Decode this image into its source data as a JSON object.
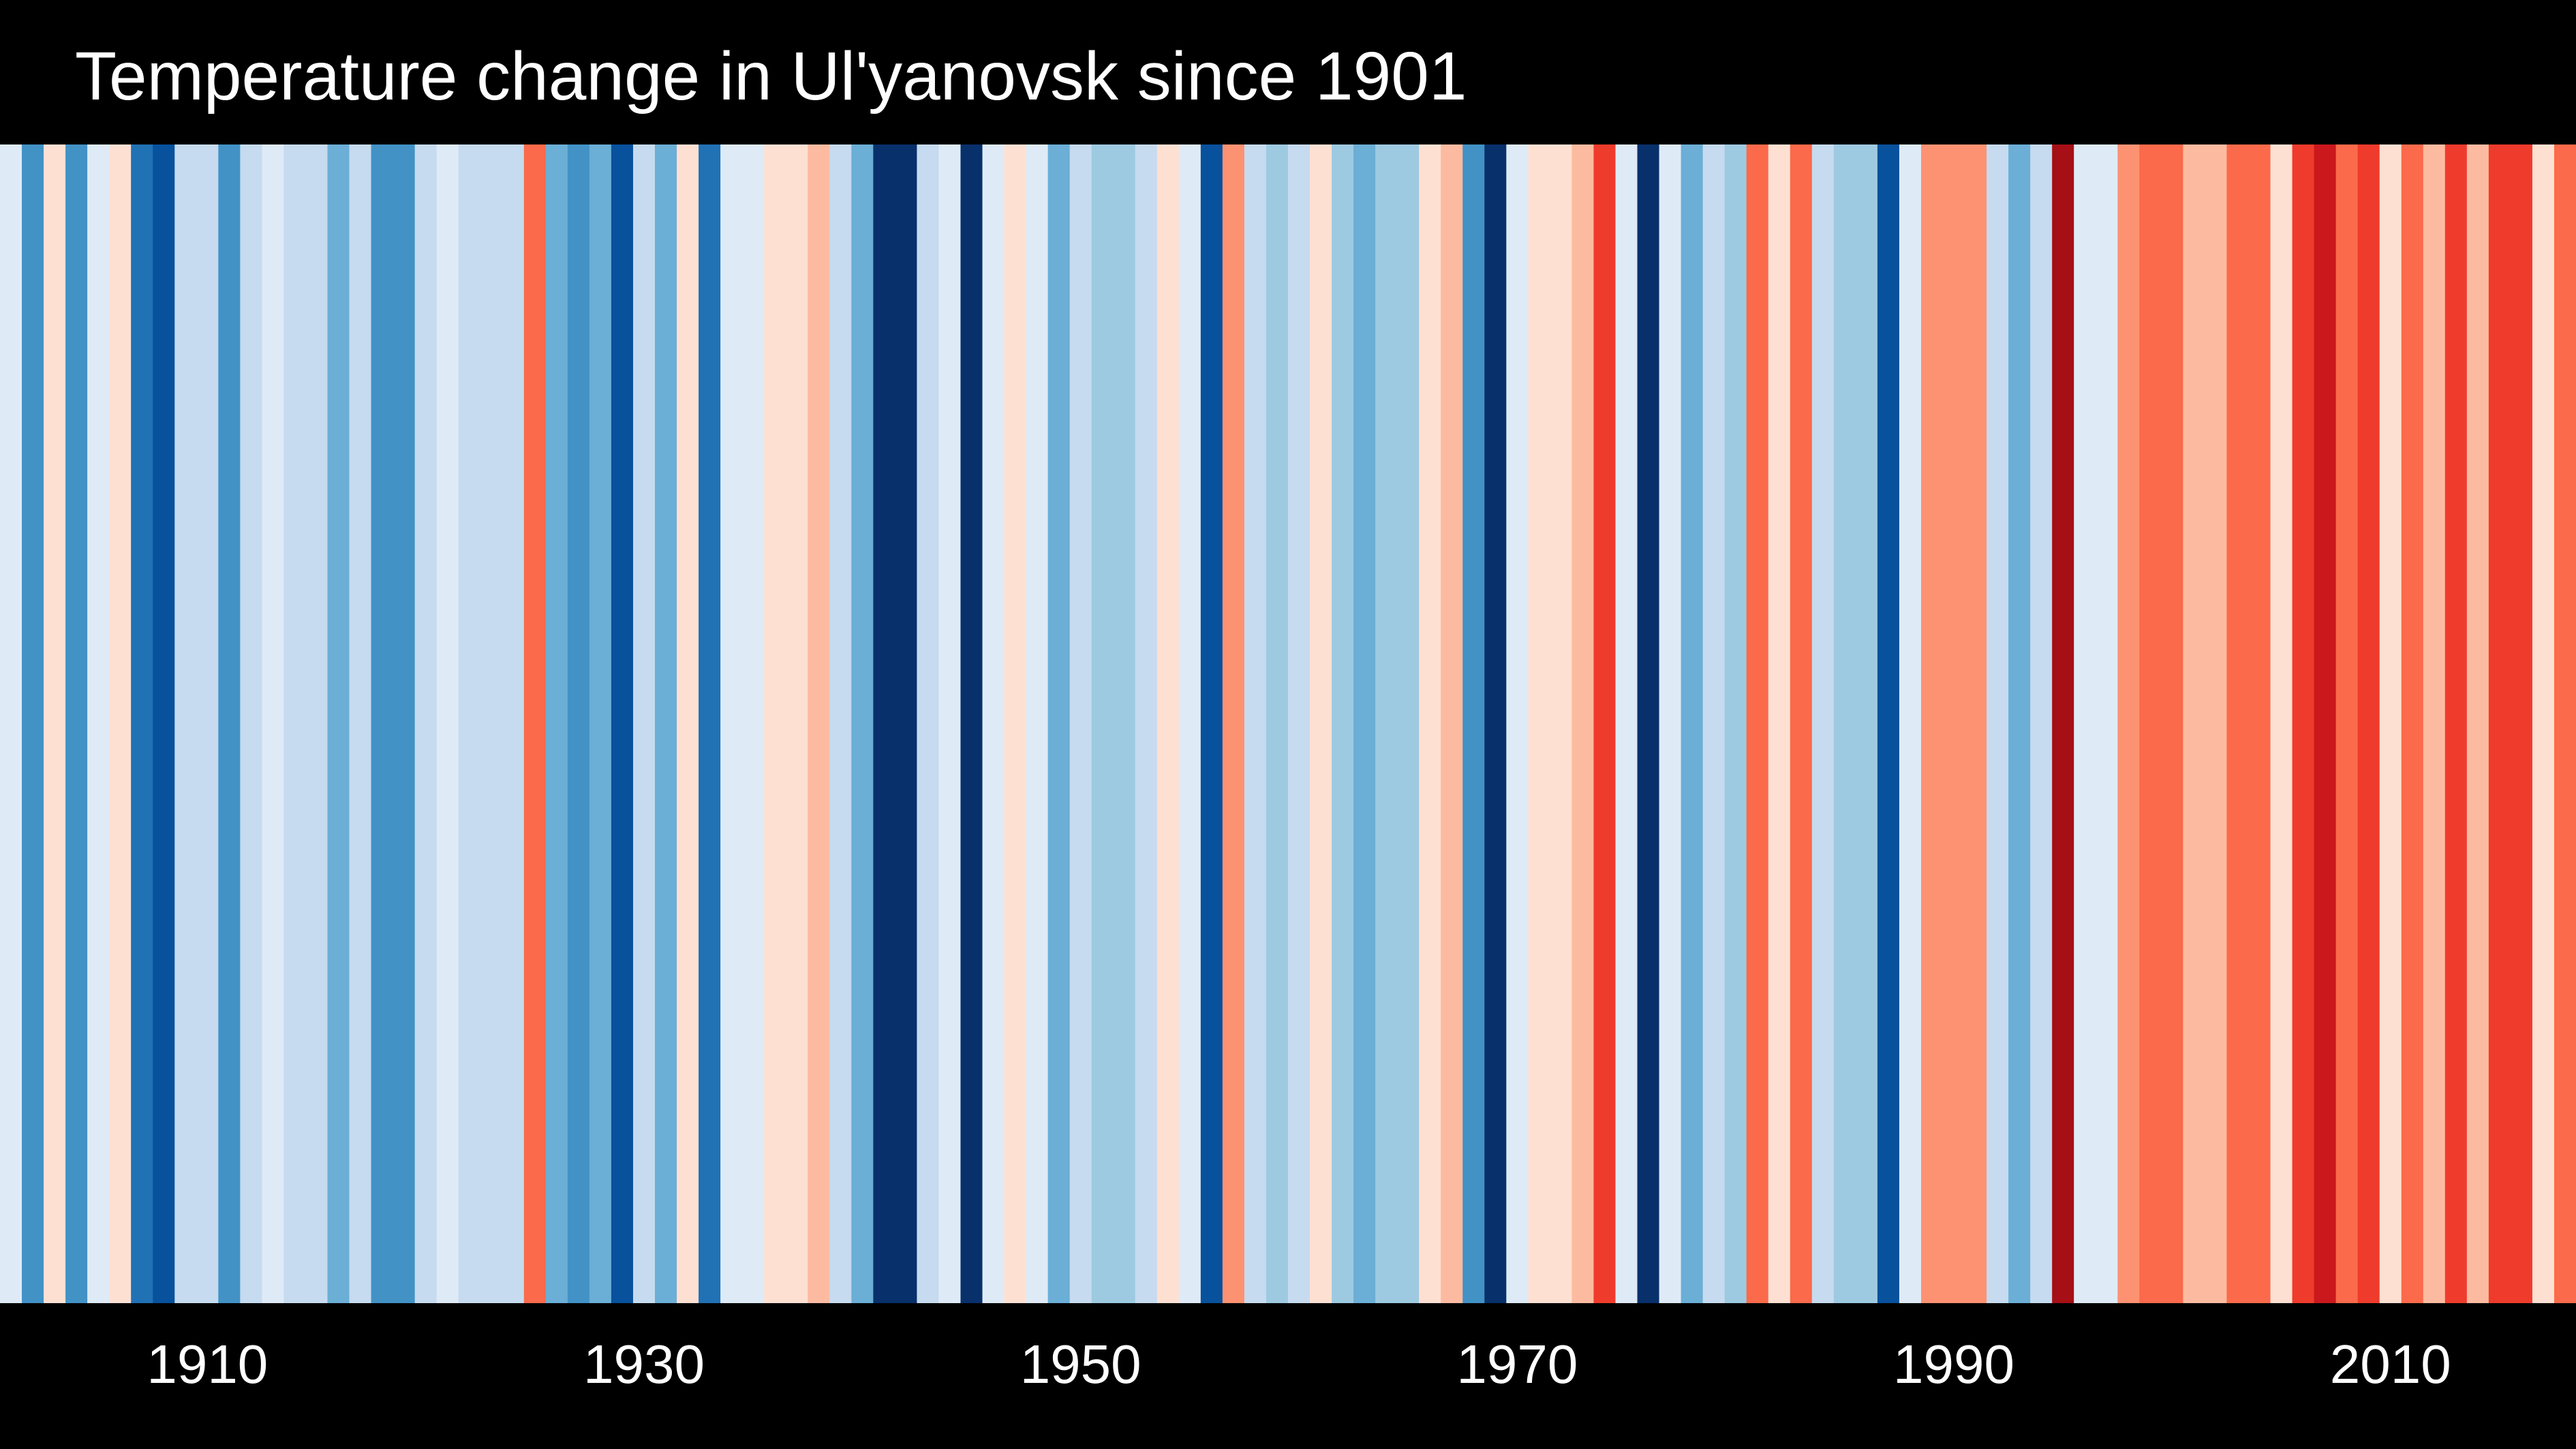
{
  "title": "Temperature change in Ul'yanovsk since 1901",
  "chart_data": {
    "type": "heatmap",
    "title": "Temperature change in Ul'yanovsk since 1901",
    "x_start_year": 1901,
    "x_end_year": 2018,
    "xlim": [
      1900.5,
      2018.5
    ],
    "tick_labels": [
      "1910",
      "1930",
      "1950",
      "1970",
      "1990",
      "2010"
    ],
    "tick_values": [
      1910,
      1930,
      1950,
      1970,
      1990,
      2010
    ],
    "colors_by_year": [
      "#deebf7",
      "#4292c6",
      "#fee0d2",
      "#4292c6",
      "#deebf7",
      "#fee0d2",
      "#2171b5",
      "#08519c",
      "#c6dbef",
      "#c6dbef",
      "#4292c6",
      "#c6dbef",
      "#deebf7",
      "#c6dbef",
      "#c6dbef",
      "#6baed6",
      "#c6dbef",
      "#4292c6",
      "#4292c6",
      "#c6dbef",
      "#deebf7",
      "#c6dbef",
      "#c6dbef",
      "#c6dbef",
      "#fb6a4a",
      "#6baed6",
      "#4292c6",
      "#6baed6",
      "#08519c",
      "#c6dbef",
      "#6baed6",
      "#fee0d2",
      "#2171b5",
      "#deebf7",
      "#deebf7",
      "#fee0d2",
      "#fee0d2",
      "#fcbba1",
      "#c6dbef",
      "#6baed6",
      "#08306b",
      "#08306b",
      "#c6dbef",
      "#deebf7",
      "#08306b",
      "#deebf7",
      "#fee0d2",
      "#deebf7",
      "#6baed6",
      "#c6dbef",
      "#9ecae1",
      "#9ecae1",
      "#c6dbef",
      "#fee0d2",
      "#deebf7",
      "#08519c",
      "#fc9272",
      "#c6dbef",
      "#9ecae1",
      "#c6dbef",
      "#fee0d2",
      "#9ecae1",
      "#6baed6",
      "#9ecae1",
      "#9ecae1",
      "#fee0d2",
      "#fcbba1",
      "#4292c6",
      "#08306b",
      "#deebf7",
      "#fee0d2",
      "#fee0d2",
      "#fcbba1",
      "#ef3b2c",
      "#deebf7",
      "#08306b",
      "#deebf7",
      "#6baed6",
      "#c6dbef",
      "#9ecae1",
      "#fb6a4a",
      "#fee0d2",
      "#fb6a4a",
      "#c6dbef",
      "#9ecae1",
      "#9ecae1",
      "#08519c",
      "#deebf7",
      "#fc9272",
      "#fc9272",
      "#fc9272",
      "#c6dbef",
      "#6baed6",
      "#c6dbef",
      "#a50f15",
      "#deebf7",
      "#deebf7",
      "#fc9272",
      "#fb6a4a",
      "#fb6a4a",
      "#fcbba1",
      "#fcbba1",
      "#fb6a4a",
      "#fb6a4a",
      "#fee0d2",
      "#ef3b2c",
      "#cb181d",
      "#fb6a4a",
      "#ef3b2c",
      "#fee0d2",
      "#fb6a4a",
      "#fcbba1",
      "#ef3b2c",
      "#fcbba1",
      "#ef3b2c",
      "#ef3b2c",
      "#fee0d2",
      "#fb6a4a"
    ]
  }
}
